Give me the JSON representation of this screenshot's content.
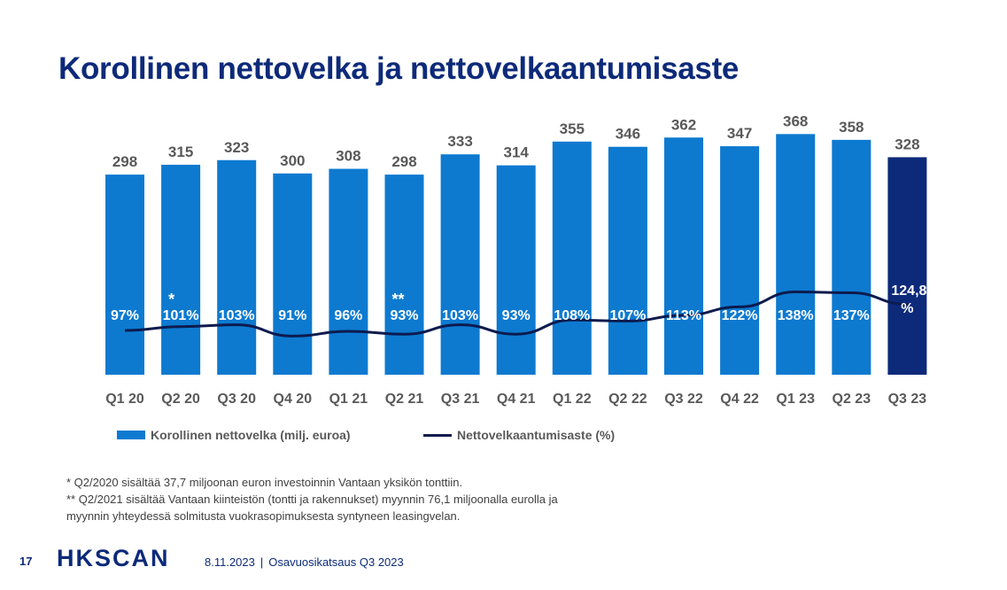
{
  "title": "Korollinen nettovelka ja nettovelkaantumisaste",
  "colors": {
    "bar": "#0d7ad0",
    "bar_highlight": "#0d2a7a",
    "line": "#0d1b4e",
    "title": "#0d2a7a"
  },
  "chart_data": {
    "type": "bar",
    "categories": [
      "Q1 20",
      "Q2 20",
      "Q3 20",
      "Q4 20",
      "Q1 21",
      "Q2 21",
      "Q3 21",
      "Q4 21",
      "Q1 22",
      "Q2 22",
      "Q3 22",
      "Q4 22",
      "Q1 23",
      "Q2 23",
      "Q3 23"
    ],
    "series": [
      {
        "name": "Korollinen nettovelka (milj. euroa)",
        "type": "bar",
        "values": [
          298,
          315,
          323,
          300,
          308,
          298,
          333,
          314,
          355,
          346,
          362,
          347,
          368,
          358,
          328
        ],
        "labels": [
          "298",
          "315",
          "323",
          "300",
          "308",
          "298",
          "333",
          "314",
          "355",
          "346",
          "362",
          "347",
          "368",
          "358",
          "328"
        ]
      },
      {
        "name": "Nettovelkaantumisaste (%)",
        "type": "line",
        "values": [
          97,
          101,
          103,
          91,
          96,
          93,
          103,
          93,
          108,
          107,
          113,
          122,
          138,
          137,
          124.8
        ],
        "labels": [
          "97%",
          "101%",
          "103%",
          "91%",
          "96%",
          "93%",
          "103%",
          "93%",
          "108%",
          "107%",
          "113%",
          "122%",
          "138%",
          "137%",
          "124,8 %"
        ]
      }
    ],
    "annotations": [
      {
        "category": "Q2 20",
        "text": "*"
      },
      {
        "category": "Q2 21",
        "text": "**"
      }
    ],
    "highlight_category": "Q3 23",
    "legend_position": "bottom",
    "grid": false
  },
  "footnotes": [
    "* Q2/2020 sisältää 37,7 miljoonan euron investoinnin Vantaan yksikön tonttiin.",
    "** Q2/2021 sisältää Vantaan kiinteistön (tontti ja rakennukset) myynnin 76,1 miljoonalla eurolla ja",
    "myynnin yhteydessä solmitusta vuokrasopimuksesta syntyneen leasingvelan."
  ],
  "footer": {
    "page_number": "17",
    "logo_text": "HKSCAN",
    "date": "8.11.2023",
    "separator": "|",
    "presentation": "Osavuosikatsaus Q3 2023"
  }
}
